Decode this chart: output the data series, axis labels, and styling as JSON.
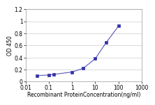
{
  "x": [
    0.031,
    0.1,
    0.16,
    1.0,
    3.0,
    10.0,
    30.0,
    100.0
  ],
  "y": [
    0.1,
    0.11,
    0.12,
    0.16,
    0.22,
    0.38,
    0.65,
    0.92
  ],
  "line_color": "#5555bb",
  "marker_color": "#3333aa",
  "marker": "s",
  "marker_size": 2.5,
  "line_width": 0.8,
  "xlabel": "Recombinant ProteinConcentration(ng/ml)",
  "ylabel": "OD 450",
  "xlim": [
    0.01,
    1000
  ],
  "ylim": [
    0,
    1.2
  ],
  "yticks": [
    0,
    0.2,
    0.4,
    0.6,
    0.8,
    1.0,
    1.2
  ],
  "ytick_labels": [
    "0",
    "0.2",
    "0.4",
    "0.6",
    "0.8",
    "1",
    "1.2"
  ],
  "xticks": [
    0.01,
    0.1,
    1,
    10,
    100,
    1000
  ],
  "xtick_labels": [
    "0.01",
    "0.1",
    "1",
    "10",
    "100",
    "1000"
  ],
  "label_fontsize": 5.5,
  "tick_fontsize": 5.5,
  "grid_color": "#cccccc",
  "grid_linewidth": 0.5,
  "background_color": "#ffffff",
  "spine_color": "#999999"
}
